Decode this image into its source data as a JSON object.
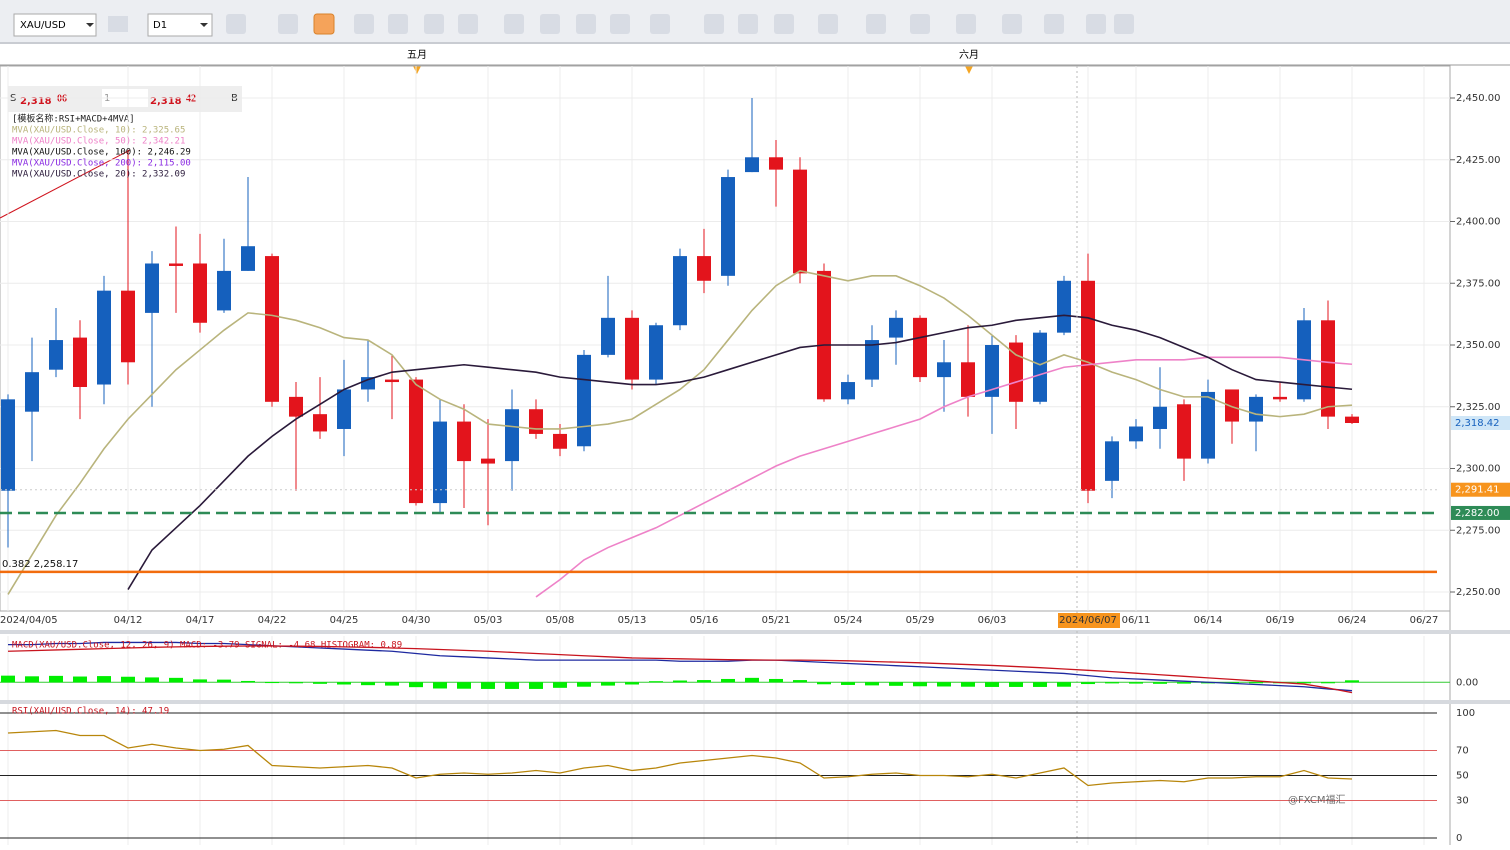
{
  "toolbar": {
    "symbol": "XAU/USD",
    "timeframe": "D1"
  },
  "month_markers": [
    "五月",
    "六月"
  ],
  "quote": {
    "sell_label": "S",
    "sell_big": "2,318",
    "sell_small": "06",
    "lot": "1",
    "buy_big": "2,318",
    "buy_small": "42",
    "buy_label": "B"
  },
  "watermark": "@FXCM福汇",
  "chart_data": {
    "type": "candlestick",
    "template": "[模板名称:RSI+MACD+4MVA]",
    "categories": [
      "2024/04/05",
      null,
      null,
      null,
      null,
      "04/12",
      null,
      null,
      "04/17",
      null,
      null,
      "04/22",
      null,
      null,
      "04/25",
      null,
      null,
      "04/30",
      null,
      null,
      "05/03",
      null,
      null,
      "05/08",
      null,
      null,
      "05/13",
      null,
      null,
      "05/16",
      null,
      null,
      "05/21",
      null,
      null,
      "05/24",
      null,
      null,
      "05/29",
      null,
      null,
      "06/03",
      null,
      null,
      null,
      "2024/06/07",
      null,
      "06/11",
      null,
      null,
      "06/14",
      null,
      null,
      "06/19",
      null,
      null,
      "06/24",
      null,
      null,
      "06/27"
    ],
    "highlight": 45,
    "open": [
      2291,
      2323,
      2340,
      2353,
      2334,
      2372,
      2363,
      2383,
      2383,
      2364,
      2380,
      2386,
      2329,
      2322,
      2316,
      2332,
      2336,
      2336,
      2286,
      2319,
      2304,
      2303,
      2324,
      2314,
      2309,
      2346,
      2361,
      2336,
      2358,
      2386,
      2378,
      2420,
      2426,
      2421,
      2380,
      2328,
      2336,
      2353,
      2361,
      2337,
      2343,
      2329,
      2351,
      2327,
      2355,
      2376,
      2295,
      2311,
      2316,
      2326,
      2304,
      2332,
      2319,
      2329,
      2328,
      2360,
      2321,
      null,
      null,
      null
    ],
    "high": [
      2330,
      2353,
      2365,
      2360,
      2378,
      2429,
      2388,
      2398,
      2395,
      2393,
      2418,
      2387,
      2335,
      2337,
      2344,
      2352,
      2346,
      2337,
      2328,
      2326,
      2320,
      2332,
      2328,
      2318,
      2348,
      2378,
      2364,
      2359,
      2389,
      2397,
      2421,
      2450,
      2433,
      2426,
      2383,
      2338,
      2358,
      2364,
      2362,
      2352,
      2358,
      2354,
      2354,
      2356,
      2378,
      2387,
      2313,
      2320,
      2341,
      2328,
      2336,
      2332,
      2330,
      2335,
      2365,
      2368,
      2322,
      null,
      null,
      null
    ],
    "low": [
      2268,
      2303,
      2337,
      2320,
      2326,
      2334,
      2325,
      2363,
      2355,
      2363,
      2380,
      2325,
      2291,
      2312,
      2305,
      2327,
      2320,
      2285,
      2282,
      2284,
      2277,
      2291,
      2312,
      2305,
      2307,
      2345,
      2332,
      2334,
      2356,
      2371,
      2374,
      2420,
      2406,
      2375,
      2327,
      2326,
      2333,
      2342,
      2335,
      2323,
      2321,
      2314,
      2316,
      2326,
      2354,
      2286,
      2288,
      2308,
      2308,
      2295,
      2302,
      2310,
      2307,
      2327,
      2327,
      2316,
      2318,
      null,
      null,
      null
    ],
    "close": [
      2328,
      2339,
      2352,
      2333,
      2372,
      2343,
      2383,
      2382,
      2359,
      2380,
      2390,
      2327,
      2321,
      2315,
      2332,
      2337,
      2335,
      2286,
      2319,
      2303,
      2302,
      2324,
      2314,
      2308,
      2346,
      2361,
      2336,
      2358,
      2386,
      2376,
      2418,
      2426,
      2421,
      2379,
      2328,
      2335,
      2352,
      2361,
      2337,
      2343,
      2329,
      2350,
      2327,
      2355,
      2376,
      2291,
      2311,
      2317,
      2325,
      2304,
      2331,
      2319,
      2329,
      2328,
      2360,
      2321,
      2318.42,
      null,
      null,
      null
    ],
    "last_price_label": "2,318.42",
    "up_color": "#1560bd",
    "down_color": "#e3141c",
    "ylim": [
      2250,
      2450
    ],
    "yticks": [
      {
        "value": 2250,
        "label": "2,250.00"
      },
      {
        "value": 2275,
        "label": "2,275.00"
      },
      {
        "value": 2300,
        "label": "2,300.00"
      },
      {
        "value": 2325,
        "label": "2,325.00"
      },
      {
        "value": 2350,
        "label": "2,350.00"
      },
      {
        "value": 2375,
        "label": "2,375.00"
      },
      {
        "value": 2400,
        "label": "2,400.00"
      },
      {
        "value": 2425,
        "label": "2,425.00"
      },
      {
        "value": 2450,
        "label": "2,450.00"
      }
    ],
    "grid": true,
    "series": [
      {
        "name": "MVA(XAU/USD.Close, 10): 2,325.65",
        "color": "#b9b47c",
        "values": [
          2249,
          2265,
          2281,
          2294,
          2308,
          2320,
          2330,
          2340,
          2348,
          2356,
          2363,
          2362,
          2360,
          2357,
          2353,
          2352,
          2346,
          2334,
          2328,
          2324,
          2318,
          2317,
          2316,
          2316,
          2317,
          2318,
          2320,
          2326,
          2332,
          2340,
          2352,
          2364,
          2374,
          2380,
          2378,
          2376,
          2378,
          2378,
          2374,
          2369,
          2362,
          2354,
          2346,
          2342,
          2346,
          2343,
          2339,
          2336,
          2332,
          2329,
          2329,
          2325,
          2322,
          2321,
          2322,
          2325,
          2325.65,
          null,
          null,
          null
        ]
      },
      {
        "name": "MVA(XAU/USD.Close, 50): 2,342.21",
        "color": "#ee82c8",
        "values": [
          null,
          null,
          null,
          null,
          null,
          null,
          null,
          null,
          null,
          null,
          null,
          null,
          null,
          null,
          null,
          null,
          null,
          null,
          null,
          null,
          null,
          null,
          2248,
          2255,
          2263,
          2268,
          2272,
          2276,
          2281,
          2286,
          2291,
          2296,
          2301,
          2305,
          2308,
          2311,
          2314,
          2317,
          2320,
          2325,
          2329,
          2332,
          2335,
          2338,
          2341,
          2342,
          2343,
          2344,
          2344,
          2344,
          2345,
          2345,
          2345,
          2345,
          2344,
          2343,
          2342.21,
          null,
          null,
          null
        ]
      },
      {
        "name": "MVA(XAU/USD.Close, 100): 2,246.29",
        "color": "#111111"
      },
      {
        "name": "MVA(XAU/USD.Close, 200): 2,115.00",
        "color": "#8a2be2"
      },
      {
        "name": "MVA(XAU/USD.Close, 20): 2,332.09",
        "color": "#2a1a3a",
        "values": [
          null,
          null,
          null,
          null,
          null,
          2251,
          2267,
          2276,
          2285,
          2295,
          2305,
          2313,
          2320,
          2326,
          2332,
          2336,
          2339,
          2340,
          2341,
          2342,
          2341,
          2340,
          2339,
          2337,
          2336,
          2335,
          2334,
          2334,
          2335,
          2337,
          2340,
          2343,
          2346,
          2349,
          2350,
          2350,
          2350,
          2351,
          2353,
          2355,
          2357,
          2358,
          2360,
          2361,
          2362,
          2361,
          2358,
          2356,
          2353,
          2349,
          2345,
          2340,
          2336,
          2335,
          2334,
          2333,
          2332.09,
          null,
          null,
          null
        ]
      }
    ],
    "hlines": [
      {
        "value": 2291.41,
        "label": "2,291.41",
        "color": "#f7941d",
        "line_color": "#cccccc",
        "style": "dotted",
        "label_side": "right"
      },
      {
        "value": 2282,
        "label": "2,282.00",
        "color": "#2e8b57",
        "line_color": "#2e8b57",
        "style": "dashed",
        "label_side": "right"
      },
      {
        "value": 2258.17,
        "label": "0.382 2,258.17",
        "color": "#f26c0d",
        "line_color": "#f26c0d",
        "style": "solid",
        "label_side": "left"
      }
    ],
    "macd": {
      "title": "MACD(XAU/USD.Close, 12, 26, 9)  MACD: -3.79  SIGNAL: -4.68  HISTOGRAM: 0.89",
      "ylim": [
        -8,
        20
      ],
      "yticks": [
        {
          "value": 0,
          "label": "0.00"
        }
      ],
      "macd_color": "#1e2aa0",
      "signal_color": "#c8141e",
      "hist_color": "#00ee00",
      "macd_values": [
        17,
        17,
        17.5,
        17.5,
        18,
        18,
        18,
        18,
        17.5,
        17.5,
        17,
        16.5,
        16,
        15.5,
        15,
        14.5,
        14,
        13,
        12,
        11.5,
        11,
        10.5,
        10,
        10,
        10,
        10,
        10,
        10,
        9.5,
        9.5,
        9.5,
        10,
        10,
        9.5,
        9,
        8.5,
        8,
        7.5,
        7,
        6.5,
        6,
        5.5,
        5,
        4.5,
        4,
        3,
        2,
        1.5,
        1,
        0.5,
        0,
        -0.5,
        -1,
        -1.5,
        -2,
        -3,
        -3.79,
        null,
        null,
        null
      ],
      "signal_values": [
        14,
        14.3,
        14.6,
        14.9,
        15.2,
        15.5,
        15.8,
        16,
        16.2,
        16.3,
        16.4,
        16.4,
        16.3,
        16.2,
        16,
        15.8,
        15.5,
        15.2,
        14.8,
        14.4,
        14,
        13.5,
        13,
        12.5,
        12,
        11.5,
        11,
        10.8,
        10.6,
        10.4,
        10.2,
        10.1,
        10,
        10,
        9.9,
        9.7,
        9.4,
        9.1,
        8.8,
        8.4,
        8,
        7.6,
        7.1,
        6.6,
        6,
        5.4,
        4.8,
        4.1,
        3.4,
        2.7,
        2,
        1.3,
        0.6,
        -0.1,
        -0.8,
        -2.6,
        -4.68,
        null,
        null,
        null
      ],
      "histogram": [
        3,
        2.7,
        2.9,
        2.6,
        2.8,
        2.5,
        2.2,
        2,
        1.3,
        1.2,
        0.6,
        0.1,
        -0.3,
        -0.7,
        -1,
        -1.3,
        -1.5,
        -2.2,
        -2.8,
        -2.9,
        -3,
        -3,
        -3,
        -2.5,
        -2,
        -1.5,
        -1,
        0.5,
        0.8,
        1,
        1.5,
        2,
        1.5,
        1,
        -0.9,
        -1.2,
        -1.4,
        -1.6,
        -1.8,
        -1.9,
        -2,
        -2.1,
        -2.1,
        -2.1,
        -2,
        -0.8,
        -0.5,
        -0.6,
        -0.7,
        -0.6,
        -0.5,
        -0.4,
        -0.4,
        -0.3,
        -0.2,
        -0.4,
        0.89,
        null,
        null,
        null
      ]
    },
    "rsi": {
      "title": "RSI(XAU/USD.Close, 14): 47.19",
      "ylim": [
        0,
        100
      ],
      "yticks": [
        0,
        30,
        50,
        70,
        100
      ],
      "color": "#b8860b",
      "values": [
        84,
        85,
        86,
        82,
        82,
        72,
        75,
        72,
        70,
        71,
        74,
        58,
        57,
        56,
        57,
        58,
        56,
        48,
        51,
        52,
        51,
        52,
        54,
        52,
        56,
        58,
        54,
        56,
        60,
        62,
        64,
        66,
        64,
        60,
        48,
        49,
        51,
        52,
        50,
        50,
        49,
        51,
        48,
        52,
        56,
        42,
        44,
        45,
        46,
        45,
        48,
        48,
        49,
        49,
        54,
        48,
        47.19,
        null,
        null,
        null
      ]
    }
  }
}
